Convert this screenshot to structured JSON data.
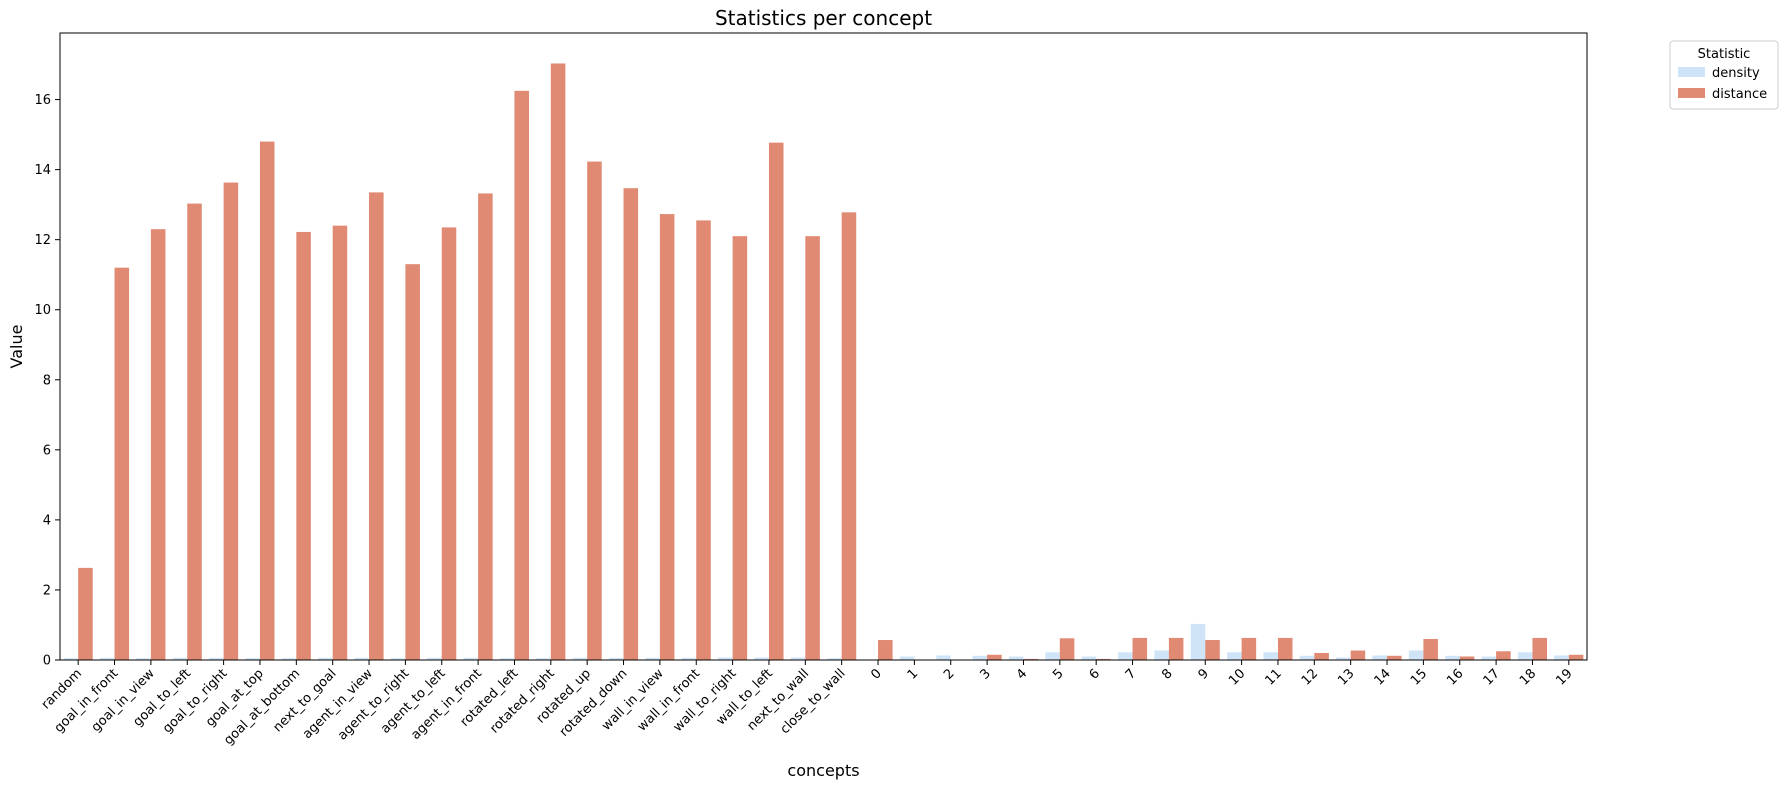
{
  "chart_data": {
    "type": "bar",
    "title": "Statistics per concept",
    "xlabel": "concepts",
    "ylabel": "Value",
    "ylim": [
      0,
      17.9
    ],
    "yticks": [
      0,
      2,
      4,
      6,
      8,
      10,
      12,
      14,
      16
    ],
    "grid": false,
    "legend": {
      "title": "Statistic",
      "placement": "outside-top-right"
    },
    "categories": [
      "random",
      "goal_in_front",
      "goal_in_view",
      "goal_to_left",
      "goal_to_right",
      "goal_at_top",
      "goal_at_bottom",
      "next_to_goal",
      "agent_in_view",
      "agent_to_right",
      "agent_to_left",
      "agent_in_front",
      "rotated_left",
      "rotated_right",
      "rotated_up",
      "rotated_down",
      "wall_in_view",
      "wall_in_front",
      "wall_to_right",
      "wall_to_left",
      "next_to_wall",
      "close_to_wall",
      "0",
      "1",
      "2",
      "3",
      "4",
      "5",
      "6",
      "7",
      "8",
      "9",
      "10",
      "11",
      "12",
      "13",
      "14",
      "15",
      "16",
      "17",
      "18",
      "19"
    ],
    "series": [
      {
        "name": "density",
        "color": "#cfe4f7",
        "values": [
          0.05,
          0.06,
          0.05,
          0.06,
          0.06,
          0.05,
          0.05,
          0.06,
          0.06,
          0.05,
          0.06,
          0.06,
          0.05,
          0.05,
          0.06,
          0.06,
          0.06,
          0.06,
          0.07,
          0.07,
          0.07,
          0.05,
          0.0,
          0.1,
          0.13,
          0.12,
          0.1,
          0.22,
          0.1,
          0.22,
          0.27,
          1.03,
          0.22,
          0.22,
          0.12,
          0.07,
          0.13,
          0.27,
          0.12,
          0.1,
          0.22,
          0.13
        ]
      },
      {
        "name": "distance",
        "color": "#e08a73",
        "values": [
          2.63,
          11.2,
          12.3,
          13.03,
          13.63,
          14.8,
          12.22,
          12.4,
          13.35,
          11.3,
          12.35,
          13.32,
          16.25,
          17.03,
          14.23,
          13.47,
          12.73,
          12.55,
          12.1,
          14.77,
          12.1,
          12.78,
          0.57,
          0.0,
          0.0,
          0.15,
          0.03,
          0.62,
          0.03,
          0.63,
          0.63,
          0.57,
          0.63,
          0.63,
          0.2,
          0.27,
          0.12,
          0.6,
          0.1,
          0.25,
          0.63,
          0.15
        ]
      }
    ]
  }
}
